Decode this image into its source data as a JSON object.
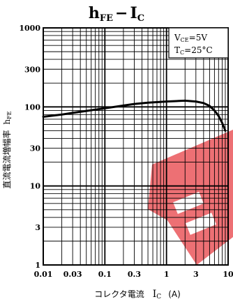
{
  "chart_data": {
    "type": "line",
    "title": {
      "main": "h",
      "main_sub": "FE",
      "dash": "−",
      "var": "I",
      "var_sub": "C"
    },
    "xlabel": {
      "text": "コレクタ電流",
      "var": "I",
      "var_sub": "C",
      "unit": "(A)"
    },
    "ylabel": {
      "text": "直流電流増幅率",
      "var": "h",
      "var_sub": "FE"
    },
    "x_scale": "log",
    "y_scale": "log",
    "xlim": [
      0.01,
      10
    ],
    "ylim": [
      1,
      1000
    ],
    "x_ticks": [
      {
        "value": 0.01,
        "label": "0.01"
      },
      {
        "value": 0.03,
        "label": "0.03"
      },
      {
        "value": 0.1,
        "label": "0.1"
      },
      {
        "value": 0.3,
        "label": "0.3"
      },
      {
        "value": 1,
        "label": "1"
      },
      {
        "value": 3,
        "label": "3"
      },
      {
        "value": 10,
        "label": "10"
      }
    ],
    "y_ticks": [
      {
        "value": 1,
        "label": "1"
      },
      {
        "value": 3,
        "label": "3"
      },
      {
        "value": 10,
        "label": "10"
      },
      {
        "value": 30,
        "label": "30"
      },
      {
        "value": 100,
        "label": "100"
      },
      {
        "value": 300,
        "label": "300"
      },
      {
        "value": 1000,
        "label": "1000"
      }
    ],
    "grid": true,
    "conditions": [
      {
        "var": "V",
        "sub": "CE",
        "value": "=5V"
      },
      {
        "var": "T",
        "sub": "C",
        "value": "=25°C"
      }
    ],
    "conditions_placement": "top-right",
    "series": [
      {
        "x": [
          0.01,
          0.02,
          0.03,
          0.05,
          0.1,
          0.2,
          0.3,
          0.5,
          1,
          2,
          3,
          4,
          5,
          6,
          7,
          8,
          9
        ],
        "y": [
          75,
          80,
          84,
          89,
          96,
          104,
          109,
          113,
          117,
          120,
          117,
          112,
          103,
          90,
          77,
          63,
          50
        ]
      }
    ],
    "colors": {
      "line": "#000000",
      "grid": "#000000",
      "watermark": "#d8202a"
    }
  }
}
